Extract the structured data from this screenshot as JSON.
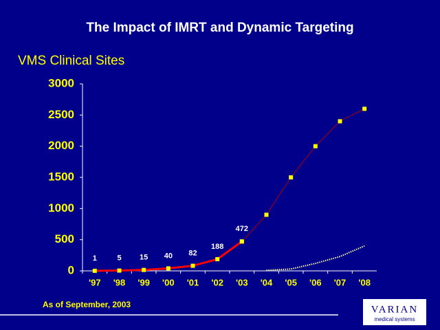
{
  "chart_data": {
    "type": "line",
    "title": "The Impact of IMRT and Dynamic Targeting",
    "y_label": "VMS Clinical Sites",
    "categories": [
      "'97",
      "'98",
      "'99",
      "'00",
      "'01",
      "'02",
      "'03",
      "'04",
      "'05",
      "'06",
      "'07",
      "'08"
    ],
    "series": [
      {
        "color": "#ff0000",
        "marker_color": "#ffff00",
        "style": "solid",
        "markers": true,
        "data_labels": true,
        "values": [
          1,
          5,
          15,
          40,
          82,
          188,
          472,
          null,
          null,
          null,
          null,
          null
        ]
      },
      {
        "color": "#b00000",
        "marker_color": "#ffff00",
        "style": "dotted",
        "markers": true,
        "data_labels": false,
        "values": [
          null,
          null,
          null,
          null,
          null,
          null,
          472,
          900,
          1500,
          2000,
          2400,
          2600
        ]
      },
      {
        "color": "#ffffa0",
        "style": "dotted",
        "markers": false,
        "data_labels": false,
        "values": [
          null,
          null,
          null,
          null,
          null,
          null,
          null,
          10,
          30,
          120,
          230,
          400
        ]
      }
    ],
    "ylim": [
      0,
      3000
    ],
    "yticks": [
      0,
      500,
      1000,
      1500,
      2000,
      2500,
      3000
    ],
    "grid": false
  },
  "footnote": "As of September, 2003",
  "logo": {
    "name": "VARIAN",
    "tagline": "medical systems"
  }
}
